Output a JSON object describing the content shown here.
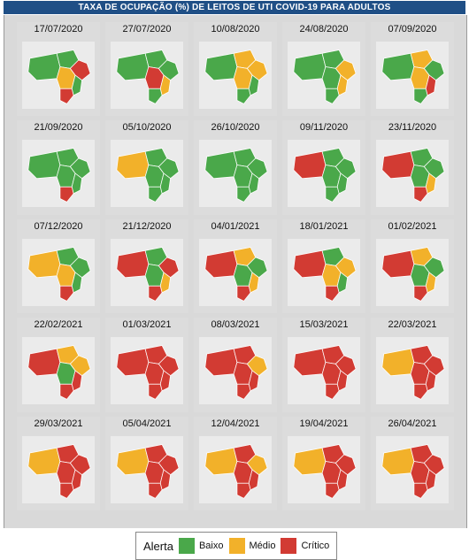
{
  "title": "TAXA DE OCUPAÇÃO (%) DE LEITOS DE UTI COVID-19 PARA ADULTOS",
  "colors": {
    "baixo": "#4aa84a",
    "medio": "#f2b12a",
    "critico": "#d23b33"
  },
  "legend": {
    "title": "Alerta",
    "items": [
      {
        "label": "Baixo",
        "color": "#4aa84a"
      },
      {
        "label": "Médio",
        "color": "#f2b12a"
      },
      {
        "label": "Crítico",
        "color": "#d23b33"
      }
    ]
  },
  "maps": [
    {
      "date": "17/07/2020",
      "regions": [
        "baixo",
        "baixo",
        "critico",
        "medio",
        "baixo",
        "critico"
      ]
    },
    {
      "date": "27/07/2020",
      "regions": [
        "baixo",
        "baixo",
        "baixo",
        "critico",
        "medio",
        "baixo"
      ]
    },
    {
      "date": "10/08/2020",
      "regions": [
        "baixo",
        "medio",
        "medio",
        "medio",
        "baixo",
        "baixo"
      ]
    },
    {
      "date": "24/08/2020",
      "regions": [
        "baixo",
        "baixo",
        "medio",
        "baixo",
        "medio",
        "baixo"
      ]
    },
    {
      "date": "07/09/2020",
      "regions": [
        "baixo",
        "medio",
        "baixo",
        "medio",
        "critico",
        "baixo"
      ]
    },
    {
      "date": "21/09/2020",
      "regions": [
        "baixo",
        "baixo",
        "baixo",
        "baixo",
        "baixo",
        "critico"
      ]
    },
    {
      "date": "05/10/2020",
      "regions": [
        "medio",
        "baixo",
        "baixo",
        "baixo",
        "baixo",
        "baixo"
      ]
    },
    {
      "date": "26/10/2020",
      "regions": [
        "baixo",
        "baixo",
        "baixo",
        "baixo",
        "baixo",
        "baixo"
      ]
    },
    {
      "date": "09/11/2020",
      "regions": [
        "critico",
        "baixo",
        "baixo",
        "baixo",
        "baixo",
        "baixo"
      ]
    },
    {
      "date": "23/11/2020",
      "regions": [
        "critico",
        "baixo",
        "baixo",
        "baixo",
        "medio",
        "critico"
      ]
    },
    {
      "date": "07/12/2020",
      "regions": [
        "medio",
        "baixo",
        "baixo",
        "medio",
        "baixo",
        "critico"
      ]
    },
    {
      "date": "21/12/2020",
      "regions": [
        "critico",
        "baixo",
        "critico",
        "baixo",
        "medio",
        "critico"
      ]
    },
    {
      "date": "04/01/2021",
      "regions": [
        "critico",
        "medio",
        "baixo",
        "baixo",
        "medio",
        "critico"
      ]
    },
    {
      "date": "18/01/2021",
      "regions": [
        "critico",
        "baixo",
        "medio",
        "medio",
        "baixo",
        "critico"
      ]
    },
    {
      "date": "01/02/2021",
      "regions": [
        "critico",
        "medio",
        "baixo",
        "baixo",
        "medio",
        "critico"
      ]
    },
    {
      "date": "22/02/2021",
      "regions": [
        "critico",
        "medio",
        "medio",
        "baixo",
        "critico",
        "critico"
      ]
    },
    {
      "date": "01/03/2021",
      "regions": [
        "critico",
        "critico",
        "critico",
        "critico",
        "critico",
        "critico"
      ]
    },
    {
      "date": "08/03/2021",
      "regions": [
        "critico",
        "critico",
        "medio",
        "critico",
        "critico",
        "critico"
      ]
    },
    {
      "date": "15/03/2021",
      "regions": [
        "critico",
        "critico",
        "critico",
        "critico",
        "critico",
        "critico"
      ]
    },
    {
      "date": "22/03/2021",
      "regions": [
        "medio",
        "critico",
        "critico",
        "critico",
        "critico",
        "critico"
      ]
    },
    {
      "date": "29/03/2021",
      "regions": [
        "medio",
        "critico",
        "critico",
        "critico",
        "critico",
        "critico"
      ]
    },
    {
      "date": "05/04/2021",
      "regions": [
        "medio",
        "critico",
        "critico",
        "critico",
        "critico",
        "critico"
      ]
    },
    {
      "date": "12/04/2021",
      "regions": [
        "medio",
        "critico",
        "medio",
        "critico",
        "critico",
        "critico"
      ]
    },
    {
      "date": "19/04/2021",
      "regions": [
        "medio",
        "critico",
        "critico",
        "critico",
        "critico",
        "critico"
      ]
    },
    {
      "date": "26/04/2021",
      "regions": [
        "medio",
        "critico",
        "critico",
        "critico",
        "critico",
        "critico"
      ]
    }
  ]
}
